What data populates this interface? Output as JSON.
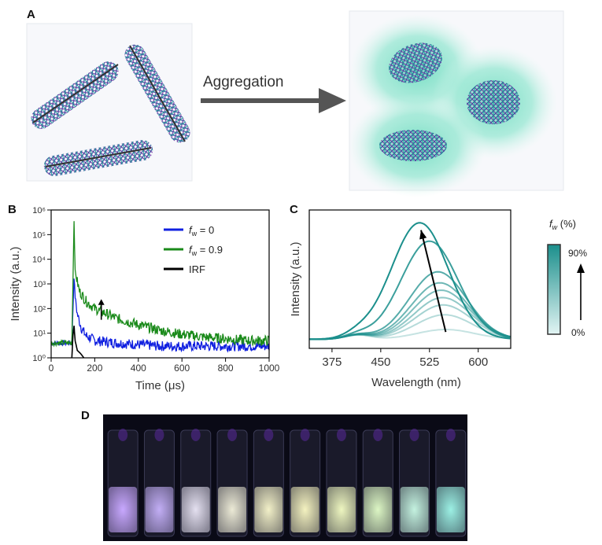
{
  "panels": {
    "a": {
      "letter": "A",
      "arrow_label": "Aggregation"
    },
    "b": {
      "letter": "B"
    },
    "c": {
      "letter": "C"
    },
    "d": {
      "letter": "D"
    }
  },
  "colors": {
    "blue_series": "#1020e0",
    "green_series": "#1a8a1a",
    "irf_series": "#000000",
    "teal": "#1b8f8c",
    "glow": "#7fe0c8",
    "photo_bg": "#0a0a16"
  },
  "chart_data": [
    {
      "type": "line",
      "panel": "B",
      "xlabel": "Time (μs)",
      "ylabel": "Intensity (a.u.)",
      "xlim": [
        0,
        1000
      ],
      "ylim": [
        1,
        1000000
      ],
      "yscale": "log",
      "xticks": [
        0,
        200,
        400,
        600,
        800,
        1000
      ],
      "yticks": [
        1,
        10,
        100,
        1000,
        10000,
        100000,
        1000000
      ],
      "ytick_labels": [
        "10⁰",
        "10¹",
        "10²",
        "10³",
        "10⁴",
        "10⁵",
        "10⁶"
      ],
      "legend": {
        "placement": "top-right",
        "items": [
          {
            "label_main": "f",
            "label_sub": "w",
            "label_rest": " = 0",
            "color": "#1020e0"
          },
          {
            "label_main": "f",
            "label_sub": "w",
            "label_rest": " = 0.9",
            "color": "#1a8a1a"
          },
          {
            "label_main": "IRF",
            "label_sub": "",
            "label_rest": "",
            "color": "#000000"
          }
        ]
      },
      "series": [
        {
          "name": "fw = 0",
          "color": "#1020e0",
          "x": [
            0,
            95,
            105,
            110,
            120,
            140,
            160,
            200,
            300,
            500,
            700,
            1000
          ],
          "y": [
            4,
            4,
            2000,
            300,
            60,
            15,
            8,
            5,
            4,
            3,
            3,
            3
          ]
        },
        {
          "name": "fw = 0.9",
          "color": "#1a8a1a",
          "x": [
            0,
            95,
            105,
            110,
            130,
            160,
            200,
            300,
            400,
            500,
            600,
            700,
            800,
            900,
            1000
          ],
          "y": [
            4,
            4,
            400000,
            3000,
            500,
            200,
            100,
            40,
            22,
            13,
            9,
            7,
            6,
            5,
            5
          ]
        },
        {
          "name": "IRF",
          "color": "#000000",
          "x": [
            95,
            100,
            105,
            110,
            120,
            135,
            150
          ],
          "y": [
            1,
            8,
            20,
            5,
            2,
            1.5,
            1
          ]
        }
      ],
      "annotation": "arrow pointing up from blue to green decay near 230 μs"
    },
    {
      "type": "line",
      "panel": "C",
      "xlabel": "Wavelength (nm)",
      "ylabel": "Intensity (a.u.)",
      "xlim": [
        340,
        650
      ],
      "xticks": [
        375,
        450,
        525,
        600
      ],
      "colorbar": {
        "title_main": "f",
        "title_sub": "w",
        "title_rest": " (%)",
        "max_label": "90%",
        "min_label": "0%"
      },
      "series": [
        {
          "peak_wavelength": 550,
          "peak_intensity": 0.08,
          "opacity": 0.25
        },
        {
          "peak_wavelength": 548,
          "peak_intensity": 0.2,
          "opacity": 0.32
        },
        {
          "peak_wavelength": 546,
          "peak_intensity": 0.28,
          "opacity": 0.4
        },
        {
          "peak_wavelength": 545,
          "peak_intensity": 0.34,
          "opacity": 0.48
        },
        {
          "peak_wavelength": 543,
          "peak_intensity": 0.4,
          "opacity": 0.56
        },
        {
          "peak_wavelength": 541,
          "peak_intensity": 0.46,
          "opacity": 0.64
        },
        {
          "peak_wavelength": 538,
          "peak_intensity": 0.55,
          "opacity": 0.74
        },
        {
          "peak_wavelength": 525,
          "peak_intensity": 0.8,
          "opacity": 0.86
        },
        {
          "peak_wavelength": 510,
          "peak_intensity": 0.95,
          "opacity": 1.0
        }
      ],
      "annotation": "arrow from low broad peak near 550 nm to high peak near 505 nm"
    }
  ],
  "vials": [
    {
      "color": "#c8a8ff"
    },
    {
      "color": "#c2aef5"
    },
    {
      "color": "#e4e0f0"
    },
    {
      "color": "#ecead6"
    },
    {
      "color": "#f2f0c8"
    },
    {
      "color": "#f4f2c0"
    },
    {
      "color": "#eef6c0"
    },
    {
      "color": "#dcf6c4"
    },
    {
      "color": "#c4f2e0"
    },
    {
      "color": "#9cf0e4"
    }
  ]
}
